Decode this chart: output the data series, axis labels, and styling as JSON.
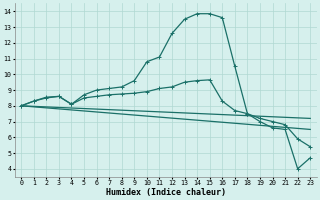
{
  "xlabel": "Humidex (Indice chaleur)",
  "xlim": [
    -0.5,
    23.5
  ],
  "ylim": [
    3.5,
    14.5
  ],
  "xticks": [
    0,
    1,
    2,
    3,
    4,
    5,
    6,
    7,
    8,
    9,
    10,
    11,
    12,
    13,
    14,
    15,
    16,
    17,
    18,
    19,
    20,
    21,
    22,
    23
  ],
  "yticks": [
    4,
    5,
    6,
    7,
    8,
    9,
    10,
    11,
    12,
    13,
    14
  ],
  "bg_color": "#d6f0ed",
  "grid_color": "#b0d8d2",
  "line_color": "#1a7068",
  "line1_x": [
    0,
    1,
    2,
    3,
    4,
    5,
    6,
    7,
    8,
    9,
    10,
    11,
    12,
    13,
    14,
    15,
    16,
    17,
    18,
    19,
    20,
    21,
    22,
    23
  ],
  "line1_y": [
    8.0,
    8.3,
    8.5,
    8.6,
    8.1,
    8.7,
    9.0,
    9.1,
    9.2,
    9.6,
    10.8,
    11.1,
    12.6,
    13.5,
    13.85,
    13.85,
    13.6,
    10.5,
    7.5,
    7.0,
    6.6,
    6.5,
    4.0,
    4.7
  ],
  "line2_x": [
    0,
    1,
    2,
    3,
    4,
    5,
    6,
    7,
    8,
    9,
    10,
    11,
    12,
    13,
    14,
    15,
    16,
    17,
    18,
    19,
    20,
    21,
    22,
    23
  ],
  "line2_y": [
    8.0,
    8.3,
    8.55,
    8.6,
    8.1,
    8.5,
    8.6,
    8.7,
    8.75,
    8.8,
    8.9,
    9.1,
    9.2,
    9.5,
    9.6,
    9.65,
    8.3,
    7.7,
    7.5,
    7.2,
    7.0,
    6.8,
    5.9,
    5.4
  ],
  "line3_x": [
    0,
    23
  ],
  "line3_y": [
    8.0,
    7.2
  ],
  "line4_x": [
    0,
    23
  ],
  "line4_y": [
    8.0,
    6.5
  ]
}
